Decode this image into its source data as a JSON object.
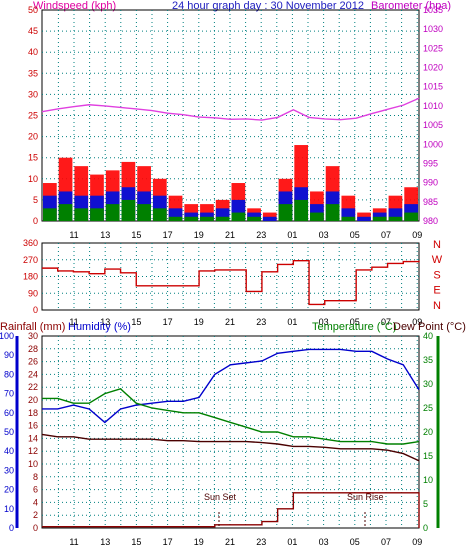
{
  "header": {
    "left_label": "Windspeed (kph)",
    "center_title": "24 hour graph day : 30 November 2012",
    "right_label": "Barometer (hpa)"
  },
  "footer_labels": {
    "rainfall": "Rainfall (mm)",
    "humidity": "Humidity (%)",
    "temperature": "Temperature (°C)",
    "dewpoint": "Dew Point (°C)"
  },
  "annotations": {
    "sunset": "Sun Set",
    "sunrise": "Sun Rise"
  },
  "colors": {
    "wind_label": "#e000a0",
    "title": "#2020c0",
    "baro_label": "#c000c0",
    "wind_max": "#ff0000",
    "wind_avg": "#1010d0",
    "wind_min": "#008000",
    "barometer": "#e040e0",
    "direction": "#cc0000",
    "compass": "#d00000",
    "rain": "#8b0000",
    "humidity": "#0000cc",
    "temperature": "#008000",
    "dewpoint": "#4a0000",
    "grid": "#008080",
    "rain_axis": "#0000cc",
    "temp_axis": "#008000"
  },
  "chart_data": [
    {
      "type": "line",
      "title": "24 hour graph day : 30 November 2012",
      "x_tick_labels": [
        "11",
        "13",
        "15",
        "17",
        "19",
        "21",
        "23",
        "01",
        "03",
        "05",
        "07",
        "09"
      ],
      "ylabel_left": "Windspeed (kph)",
      "ylabel_right": "Barometer (hpa)",
      "yticks_left": [
        0,
        5,
        10,
        15,
        20,
        25,
        30,
        35,
        40,
        45,
        50
      ],
      "ylim_left": [
        0,
        50
      ],
      "yticks_right": [
        980,
        985,
        990,
        995,
        1000,
        1005,
        1010,
        1015,
        1020,
        1025,
        1030,
        1035
      ],
      "ylim_right": [
        980,
        1035
      ],
      "x_hours": [
        0,
        1,
        2,
        3,
        4,
        5,
        6,
        7,
        8,
        9,
        10,
        11,
        12,
        13,
        14,
        15,
        16,
        17,
        18,
        19,
        20,
        21,
        22,
        23,
        24
      ],
      "series": [
        {
          "name": "Windspeed (kph)",
          "axis": "left",
          "values": [
            9,
            15,
            13,
            11,
            12,
            14,
            13,
            10,
            6,
            4,
            4,
            5,
            9,
            3,
            2,
            10,
            18,
            7,
            13,
            6,
            2,
            3,
            6,
            8,
            7
          ]
        },
        {
          "name": "Windspeed (kph)",
          "axis": "left",
          "values": [
            6,
            7,
            6,
            6,
            7,
            8,
            7,
            6,
            3,
            2,
            2,
            3,
            5,
            2,
            1,
            7,
            8,
            4,
            7,
            3,
            1,
            2,
            3,
            4,
            4
          ]
        },
        {
          "name": "Windspeed (kph)",
          "axis": "left",
          "values": [
            3,
            4,
            3,
            3,
            4,
            5,
            4,
            3,
            1,
            1,
            1,
            1,
            2,
            1,
            0,
            4,
            5,
            2,
            4,
            1,
            0,
            1,
            1,
            2,
            2
          ]
        },
        {
          "name": "Barometer (hpa)",
          "axis": "right",
          "values": [
            1008.5,
            1009.2,
            1009.8,
            1010.3,
            1010.0,
            1009.6,
            1009.2,
            1008.8,
            1008.1,
            1007.7,
            1007.1,
            1006.9,
            1006.5,
            1006.6,
            1006.3,
            1007.0,
            1009.0,
            1007.0,
            1006.6,
            1006.4,
            1006.8,
            1008.0,
            1009.1,
            1010.2,
            1012.0
          ]
        }
      ]
    },
    {
      "type": "line",
      "yticks_left": [
        0,
        90,
        180,
        270,
        360
      ],
      "ylim": [
        0,
        360
      ],
      "compass_labels": [
        "N",
        "W",
        "S",
        "E",
        "N"
      ],
      "x_tick_labels": [
        "11",
        "13",
        "15",
        "17",
        "19",
        "21",
        "23",
        "01",
        "03",
        "05",
        "07",
        "09"
      ],
      "x_hours": [
        0,
        1,
        2,
        3,
        4,
        5,
        6,
        7,
        8,
        9,
        10,
        11,
        12,
        13,
        14,
        15,
        16,
        17,
        18,
        19,
        20,
        21,
        22,
        23,
        24
      ],
      "series": [
        {
          "values": [
            225,
            210,
            205,
            195,
            220,
            200,
            130,
            130,
            130,
            130,
            210,
            215,
            215,
            100,
            205,
            245,
            265,
            30,
            50,
            50,
            215,
            230,
            250,
            260,
            265
          ]
        }
      ]
    },
    {
      "type": "line",
      "ylabel_left_1": "Rainfall (mm)",
      "ylabel_left_2": "Humidity (%)",
      "ylabel_right_1": "Temperature (°C)",
      "ylabel_right_2": "Dew Point (°C)",
      "yticks_rain": [
        0,
        2,
        4,
        6,
        8,
        10,
        12,
        14,
        16,
        18,
        20,
        22,
        24,
        26,
        28,
        30
      ],
      "ylim_rain": [
        0,
        30
      ],
      "yticks_humidity": [
        0,
        10,
        20,
        30,
        40,
        50,
        60,
        70,
        80,
        90,
        100
      ],
      "ylim_humidity": [
        0,
        100
      ],
      "yticks_temp": [
        0,
        5,
        10,
        15,
        20,
        25,
        30,
        35,
        40
      ],
      "ylim_temp": [
        0,
        40
      ],
      "x_tick_labels": [
        "11",
        "13",
        "15",
        "17",
        "19",
        "21",
        "23",
        "01",
        "03",
        "05",
        "07",
        "09"
      ],
      "x_hours": [
        0,
        1,
        2,
        3,
        4,
        5,
        6,
        7,
        8,
        9,
        10,
        11,
        12,
        13,
        14,
        15,
        16,
        17,
        18,
        19,
        20,
        21,
        22,
        23,
        24
      ],
      "series": [
        {
          "name": "Humidity (%)",
          "axis": "humidity",
          "values": [
            62,
            62,
            64,
            62,
            55,
            62,
            64,
            65,
            66,
            66,
            68,
            80,
            85,
            86,
            87,
            91,
            92,
            93,
            93,
            93,
            92,
            92,
            88,
            85,
            72
          ]
        },
        {
          "name": "Temperature (°C)",
          "axis": "temp",
          "values": [
            27,
            27,
            26,
            26,
            28,
            29,
            26,
            25,
            24.5,
            24,
            24,
            23,
            22,
            21,
            20,
            20,
            19,
            19,
            18.5,
            18,
            18,
            18,
            17.5,
            17.5,
            18
          ]
        },
        {
          "name": "Dew Point (°C)",
          "axis": "temp",
          "values": [
            19.5,
            19,
            19,
            18.5,
            18.5,
            18.5,
            18.5,
            18.5,
            18.2,
            18.2,
            18,
            18,
            18,
            18,
            17.8,
            17.5,
            17,
            17,
            16.8,
            16.5,
            16.5,
            16.5,
            16.2,
            15.5,
            14
          ]
        },
        {
          "name": "Rainfall (mm)",
          "axis": "rain",
          "values": [
            0.2,
            0.2,
            0.2,
            0.2,
            0.2,
            0.2,
            0.2,
            0.2,
            0.2,
            0.2,
            0.2,
            0.5,
            0.5,
            0.5,
            1,
            3,
            5.5,
            5.5,
            5.5,
            5.5,
            5.5,
            5.5,
            5.5,
            5.5,
            0
          ]
        }
      ]
    }
  ]
}
